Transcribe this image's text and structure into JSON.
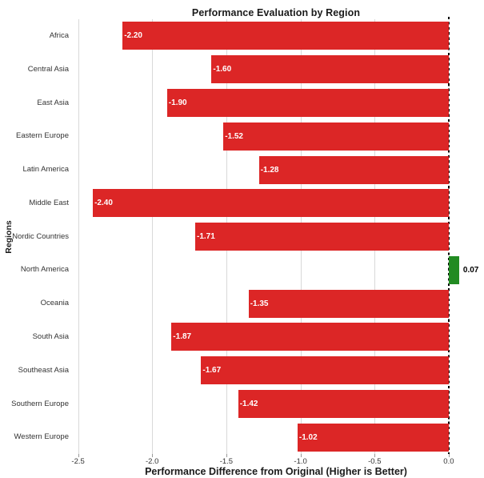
{
  "colors": {
    "negative_bar": "#DC2626",
    "positive_bar": "#228B22",
    "negative_bar_label": "#FFFFFF",
    "positive_bar_label": "#000000",
    "gridline": "#D9D9D9",
    "zero_line": "#000000",
    "text": "#1A1A1A",
    "tick_text": "#333333"
  },
  "chart_data": {
    "type": "bar",
    "orientation": "horizontal",
    "title": "Performance Evaluation by Region",
    "xlabel": "Performance Difference from Original (Higher is Better)",
    "ylabel": "Regions",
    "categories": [
      "Africa",
      "Central Asia",
      "East Asia",
      "Eastern Europe",
      "Latin America",
      "Middle East",
      "Nordic Countries",
      "North America",
      "Oceania",
      "South Asia",
      "Southeast Asia",
      "Southern Europe",
      "Western Europe"
    ],
    "values": [
      -2.2,
      -1.6,
      -1.9,
      -1.52,
      -1.28,
      -2.4,
      -1.71,
      0.07,
      -1.35,
      -1.87,
      -1.67,
      -1.42,
      -1.02
    ],
    "value_labels": [
      "-2.20",
      "-1.60",
      "-1.90",
      "-1.52",
      "-1.28",
      "-2.40",
      "-1.71",
      "0.07",
      "-1.35",
      "-1.87",
      "-1.67",
      "-1.42",
      "-1.02"
    ],
    "xticks": [
      -2.5,
      -2.0,
      -1.5,
      -1.0,
      -0.5,
      0.0
    ],
    "xtick_labels": [
      "-2.5",
      "-2.0",
      "-1.5",
      "-1.0",
      "-0.5",
      "0.0"
    ],
    "xlim": [
      -2.53,
      0.2
    ],
    "grid": "vertical-only",
    "zero_line_style": "black-dashed",
    "legend": null
  }
}
